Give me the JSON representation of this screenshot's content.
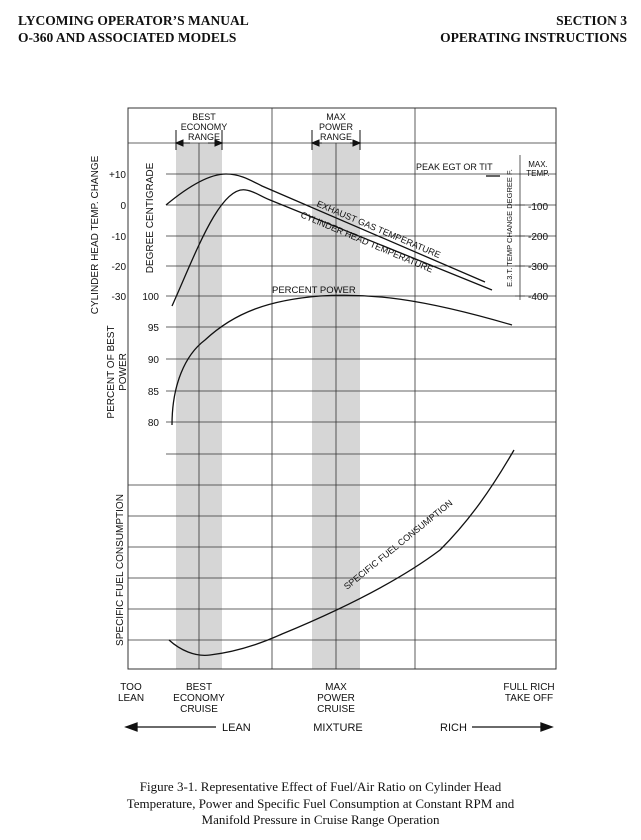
{
  "header": {
    "left_line1": "LYCOMING OPERATOR’S MANUAL",
    "left_line2": "O-360 AND ASSOCIATED MODELS",
    "right_line1": "SECTION 3",
    "right_line2": "OPERATING INSTRUCTIONS"
  },
  "figure": {
    "ranges": {
      "best_economy": [
        "BEST",
        "ECONOMY",
        "RANGE"
      ],
      "max_power": [
        "MAX",
        "POWER",
        "RANGE"
      ]
    },
    "left_axes": {
      "cht_title": "CYLINDER HEAD TEMP. CHANGE",
      "degree_title": "DEGREE CENTIGRADE",
      "cht_ticks": [
        "+10",
        "0",
        "-10",
        "-20",
        "-30"
      ],
      "power_title": [
        "PERCENT OF BEST",
        "POWER"
      ],
      "power_ticks": [
        "100",
        "95",
        "90",
        "85",
        "80"
      ],
      "sfc_title": "SPECIFIC FUEL CONSUMPTION"
    },
    "right_axes": {
      "egt_title": "E.3.T. TEMP CHANGE DEGREE F.",
      "max_temp": [
        "MAX.",
        "TEMP."
      ],
      "ticks": [
        "-100",
        "-200",
        "-300",
        "-400"
      ]
    },
    "curve_labels": {
      "peak": "PEAK EGT OR TIT",
      "egt": "EXHAUST GAS TEMPERATURE",
      "cht": "CYLINDER HEAD TEMPERATURE",
      "power": "PERCENT POWER",
      "sfc": "SPECIFIC FUEL CONSUMPTION"
    },
    "bottom_labels": {
      "too_lean": [
        "TOO",
        "LEAN"
      ],
      "best_economy": [
        "BEST",
        "ECONOMY",
        "CRUISE"
      ],
      "max_power": [
        "MAX",
        "POWER",
        "CRUISE"
      ],
      "full_rich": [
        "FULL RICH",
        "TAKE OFF"
      ]
    },
    "mixture": {
      "lean": "LEAN",
      "mixture": "MIXTURE",
      "rich": "RICH"
    }
  },
  "caption": {
    "line1": "Figure 3-1. Representative Effect of Fuel/Air Ratio on Cylinder Head",
    "line2": "Temperature, Power and Specific Fuel Consumption at Constant RPM and",
    "line3": "Manifold Pressure in Cruise Range Operation"
  }
}
